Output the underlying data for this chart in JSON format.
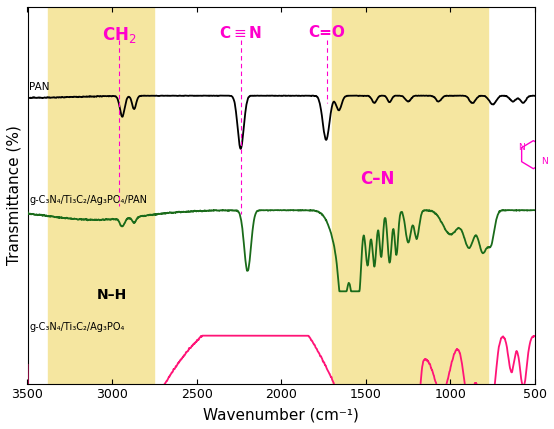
{
  "title": "",
  "xlabel": "Wavenumber (cm⁻¹)",
  "ylabel": "Transmittance (%)",
  "xlim": [
    3500,
    500
  ],
  "background_color": "#ffffff",
  "colors": {
    "black_line": "#000000",
    "green_line": "#1a6b1a",
    "pink_line": "#ff1477",
    "annotation_pink": "#ff00cc",
    "highlight_box": "#f5e6a0"
  },
  "labels": {
    "black": "PAN",
    "green": "g-C₃N₄/Ti₃C₂/Ag₃PO₄/PAN",
    "pink": "g-C₃N₄/Ti₃C₂/Ag₃PO₄"
  }
}
